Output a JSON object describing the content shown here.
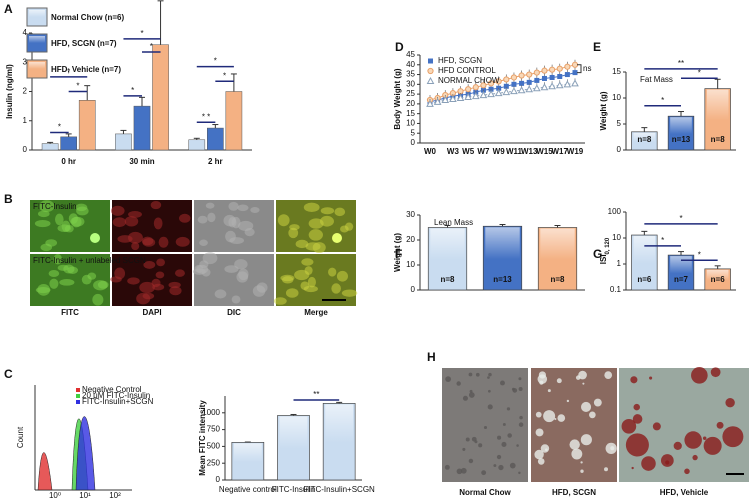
{
  "figure": {
    "panel_labels": [
      "A",
      "B",
      "C",
      "D",
      "E",
      "F",
      "G",
      "H"
    ],
    "microscopy": {
      "row_labels": [
        "FITC-Insulin",
        "FITC-Insulin + unlabeled SCGN"
      ],
      "column_labels": [
        "FITC",
        "DAPI",
        "DIC",
        "Merge"
      ]
    },
    "flow": {
      "ylabel": "Count",
      "legend": [
        "Negative Control",
        "20 μM FITC-Insulin",
        "FITC-Insulin+SCGN"
      ],
      "legend_colors": [
        "#e03030",
        "#40d040",
        "#3030e0"
      ],
      "xtick_labels": [
        "10⁰",
        "10¹",
        "10²"
      ]
    },
    "histology": {
      "captions": [
        "Normal Chow",
        "HFD, SCGN",
        "HFD, Vehicle"
      ]
    }
  },
  "chart_data": [
    {
      "type": "bar",
      "ylabel": "Insulin (ng/ml)",
      "categories": [
        "0 hr",
        "30 min",
        "2 hr"
      ],
      "series": [
        {
          "name": "Normal Chow (n=6)",
          "color": "#c9dcf0",
          "text_color": "#a9c3e6",
          "values": [
            0.22,
            0.55,
            0.35
          ],
          "errors": [
            0.04,
            0.12,
            0.05
          ]
        },
        {
          "name": "HFD, SCGN (n=7)",
          "color": "#4472c4",
          "text_color": "#3a5fae",
          "values": [
            0.45,
            1.5,
            0.75
          ],
          "errors": [
            0.1,
            0.3,
            0.12
          ]
        },
        {
          "name": "HFD, Vehicle (n=7)",
          "color": "#f4b183",
          "text_color": "#e8a068",
          "values": [
            1.7,
            3.6,
            2.0
          ],
          "errors": [
            0.5,
            1.5,
            0.6
          ]
        }
      ],
      "ylim": [
        0,
        4
      ],
      "yticks": [
        0,
        1,
        2,
        3,
        4
      ],
      "annotations": [
        "*",
        "*",
        "*",
        "*",
        "*",
        "*",
        "* *",
        "*",
        "*"
      ]
    },
    {
      "type": "line",
      "ylabel": "Body Weight (g)",
      "categories": [
        "W0",
        null,
        null,
        "W3",
        null,
        "W5",
        null,
        "W7",
        null,
        "W9",
        null,
        "W11",
        null,
        "W13",
        null,
        "W15",
        null,
        "W17",
        null,
        "W19"
      ],
      "series": [
        {
          "name": "HFD, SCGN",
          "color": "#4472c4",
          "marker": "square",
          "values": [
            21,
            22,
            23,
            24,
            24.5,
            25,
            26,
            27,
            27.5,
            28,
            29,
            30,
            30.5,
            31,
            32,
            33,
            33.5,
            34,
            35,
            36
          ]
        },
        {
          "name": "HFD CONTROL",
          "color": "#e8a068",
          "marker": "circle",
          "values": [
            22,
            23,
            24.5,
            25.5,
            26.5,
            27.5,
            28.5,
            29.5,
            30.5,
            31.5,
            32.5,
            33.5,
            34.5,
            35,
            36,
            37,
            37.5,
            38,
            39,
            40
          ]
        },
        {
          "name": "NORMAL CHOW",
          "color": "#8aa0b8",
          "marker": "triangle",
          "values": [
            20,
            21,
            22,
            22.5,
            23,
            23.5,
            24,
            24.5,
            25,
            25.5,
            26,
            26.5,
            27,
            27.5,
            28,
            28.5,
            29,
            29.5,
            30,
            30.5
          ]
        }
      ],
      "ylim": [
        0,
        45
      ],
      "yticks": [
        0,
        5,
        10,
        15,
        20,
        25,
        30,
        35,
        40,
        45
      ],
      "annotations": [
        "ns"
      ]
    },
    {
      "type": "bar",
      "title": "Fat Mass",
      "ylabel": "Weight (g)",
      "categories": [
        null,
        null,
        null
      ],
      "values": [
        3.5,
        6.5,
        11.8
      ],
      "errors": [
        0.8,
        0.9,
        1.8
      ],
      "colors": [
        "#c9dcf0",
        "#4472c4",
        "#f4b183"
      ],
      "bar_labels": [
        "n=8",
        "n=13",
        "n=8"
      ],
      "ylim": [
        0,
        15
      ],
      "yticks": [
        0,
        5,
        10,
        15
      ],
      "annotations": [
        "*",
        "*",
        "**"
      ]
    },
    {
      "type": "bar",
      "title": "Lean Mass",
      "ylabel": "Weight (g)",
      "categories": [
        null,
        null,
        null
      ],
      "values": [
        25,
        25.5,
        25
      ],
      "errors": [
        0.8,
        0.7,
        0.8
      ],
      "colors": [
        "#c9dcf0",
        "#4472c4",
        "#f4b183"
      ],
      "bar_labels": [
        "n=8",
        "n=13",
        "n=8"
      ],
      "ylim": [
        0,
        30
      ],
      "yticks": [
        0,
        10,
        20,
        30
      ]
    },
    {
      "type": "bar",
      "ylabel": "ISI",
      "ylabel_subscript": "0, 120",
      "log_scale": true,
      "categories": [
        null,
        null,
        null
      ],
      "values": [
        13,
        2.2,
        0.65
      ],
      "errors": [
        5,
        0.8,
        0.2
      ],
      "colors": [
        "#c9dcf0",
        "#4472c4",
        "#f4b183"
      ],
      "bar_labels": [
        "n=6",
        "n=7",
        "n=6"
      ],
      "ylim": [
        0.1,
        100
      ],
      "yticks": [
        0.1,
        1,
        10,
        100
      ],
      "annotations": [
        "*",
        "*",
        "*"
      ]
    },
    {
      "type": "bar",
      "ylabel": "Mean FITC intensity",
      "categories": [
        "Negative control",
        "FITC-Insulin",
        "FITC-Insulin+SCGN"
      ],
      "values": [
        560,
        960,
        1140
      ],
      "errors": [
        5,
        15,
        15
      ],
      "colors": [
        "#c9dcf0",
        "#c9dcf0",
        "#c9dcf0"
      ],
      "ylim": [
        0,
        1250
      ],
      "yticks": [
        0,
        250,
        500,
        750,
        1000
      ],
      "annotations": [
        "**"
      ]
    }
  ]
}
